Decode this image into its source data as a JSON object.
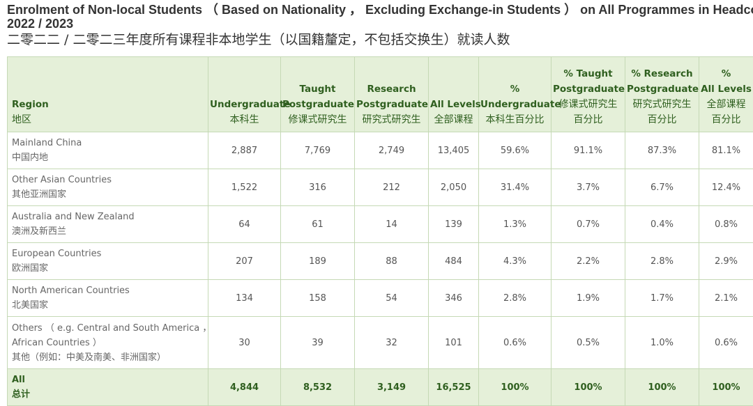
{
  "title": {
    "en_line1": "Enrolment of Non-local Students （ Based on Nationality ， Excluding Exchange-in Students ） on All Programmes in Headcount",
    "en_line2": "2022 / 2023",
    "zh": "二零二二 / 二零二三年度所有课程非本地学生（以国籍釐定，不包括交换生）就读人数"
  },
  "columns": [
    {
      "en": [
        "Region"
      ],
      "zh": "地区"
    },
    {
      "en": [
        "Undergraduate"
      ],
      "zh": "本科生"
    },
    {
      "en": [
        "Taught",
        "Postgraduate"
      ],
      "zh": "修课式研究生"
    },
    {
      "en": [
        "Research",
        "Postgraduate"
      ],
      "zh": "研究式研究生"
    },
    {
      "en": [
        "All Levels"
      ],
      "zh": "全部课程"
    },
    {
      "en": [
        "%",
        "Undergraduate"
      ],
      "zh": "本科生百分比"
    },
    {
      "en": [
        "% Taught",
        "Postgraduate"
      ],
      "zh": "修课式研究生",
      "zh2": "百分比"
    },
    {
      "en": [
        "% Research",
        "Postgraduate"
      ],
      "zh": "研究式研究生",
      "zh2": "百分比"
    },
    {
      "en": [
        "%",
        "All Levels"
      ],
      "zh": "全部课程",
      "zh2": "百分比"
    }
  ],
  "rows": [
    {
      "region_en": [
        "Mainland China"
      ],
      "region_zh": "中国内地",
      "values": [
        "2,887",
        "7,769",
        "2,749",
        "13,405",
        "59.6%",
        "91.1%",
        "87.3%",
        "81.1%"
      ]
    },
    {
      "region_en": [
        "Other Asian Countries"
      ],
      "region_zh": "其他亚洲国家",
      "values": [
        "1,522",
        "316",
        "212",
        "2,050",
        "31.4%",
        "3.7%",
        "6.7%",
        "12.4%"
      ]
    },
    {
      "region_en": [
        "Australia and New Zealand"
      ],
      "region_zh": "澳洲及新西兰",
      "values": [
        "64",
        "61",
        "14",
        "139",
        "1.3%",
        "0.7%",
        "0.4%",
        "0.8%"
      ]
    },
    {
      "region_en": [
        "European Countries"
      ],
      "region_zh": "欧洲国家",
      "values": [
        "207",
        "189",
        "88",
        "484",
        "4.3%",
        "2.2%",
        "2.8%",
        "2.9%"
      ]
    },
    {
      "region_en": [
        "North American Countries"
      ],
      "region_zh": "北美国家",
      "values": [
        "134",
        "158",
        "54",
        "346",
        "2.8%",
        "1.9%",
        "1.7%",
        "2.1%"
      ]
    },
    {
      "region_en": [
        "Others （ e.g. Central and South America ，",
        "African Countries ）"
      ],
      "region_zh": "其他（例如：中美及南美、非洲国家）",
      "values": [
        "30",
        "39",
        "32",
        "101",
        "0.6%",
        "0.5%",
        "1.0%",
        "0.6%"
      ]
    }
  ],
  "total": {
    "region_en": "All",
    "region_zh": "总计",
    "values": [
      "4,844",
      "8,532",
      "3,149",
      "16,525",
      "100%",
      "100%",
      "100%",
      "100%"
    ]
  }
}
